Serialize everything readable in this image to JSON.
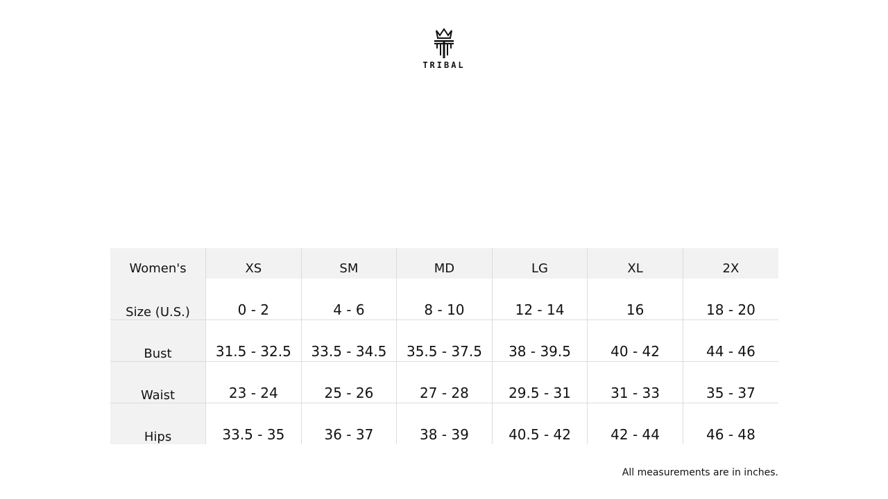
{
  "logo": {
    "text": "TRIBAL",
    "icon": "crown-t-logo"
  },
  "table": {
    "headers": [
      "Women's",
      "XS",
      "SM",
      "MD",
      "LG",
      "XL",
      "2X"
    ],
    "rows": [
      {
        "label": "Size (U.S.)",
        "values": [
          "0 - 2",
          "4 - 6",
          "8 - 10",
          "12 - 14",
          "16",
          "18 - 20"
        ]
      },
      {
        "label": "Bust",
        "values": [
          "31.5 - 32.5",
          "33.5 - 34.5",
          "35.5 - 37.5",
          "38 - 39.5",
          "40 - 42",
          "44 - 46"
        ]
      },
      {
        "label": "Waist",
        "values": [
          "23 - 24",
          "25 - 26",
          "27 - 28",
          "29.5 - 31",
          "31 - 33",
          "35 - 37"
        ]
      },
      {
        "label": "Hips",
        "values": [
          "33.5 - 35",
          "36 - 37",
          "38 - 39",
          "40.5 - 42",
          "42 - 44",
          "46 - 48"
        ]
      }
    ]
  },
  "note": "All measurements are in inches."
}
